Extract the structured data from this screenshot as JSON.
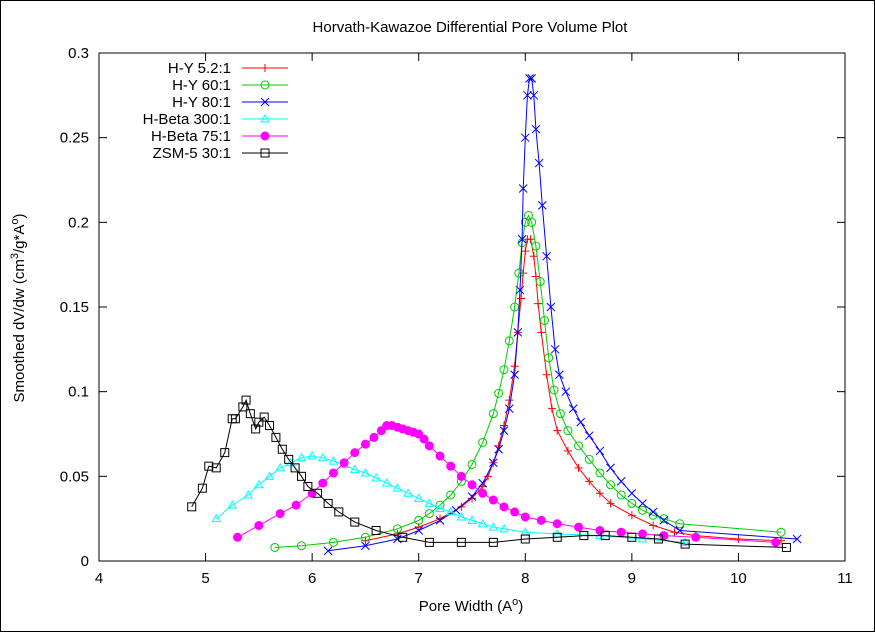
{
  "chart_data": {
    "type": "line",
    "title": "Horvath-Kawazoe Differential Pore Volume Plot",
    "xlabel": {
      "main": "Pore Width (A",
      "sup": "o",
      "tail": ")"
    },
    "ylabel": {
      "parts": [
        "Smoothed dV/dw (cm",
        "3",
        "/g*A",
        "o",
        ")"
      ]
    },
    "xlim": [
      4,
      11
    ],
    "ylim": [
      0,
      0.3
    ],
    "xticks": [
      4,
      5,
      6,
      7,
      8,
      9,
      10,
      11
    ],
    "xtick_labels": [
      "4",
      "5",
      "6",
      "7",
      "8",
      "9",
      "10",
      "11"
    ],
    "yticks": [
      0,
      0.05,
      0.1,
      0.15,
      0.2,
      0.25,
      0.3
    ],
    "ytick_labels": [
      "0",
      "0.05",
      "0.1",
      "0.15",
      "0.2",
      "0.25",
      "0.3"
    ],
    "grid": false,
    "legend_position": "top-left",
    "series": [
      {
        "name": "H-Y 5.2:1",
        "color": "#ff0000",
        "marker": "plus",
        "points": [
          [
            6.5,
            0.012
          ],
          [
            6.8,
            0.016
          ],
          [
            7.0,
            0.02
          ],
          [
            7.2,
            0.025
          ],
          [
            7.4,
            0.032
          ],
          [
            7.5,
            0.037
          ],
          [
            7.6,
            0.044
          ],
          [
            7.65,
            0.05
          ],
          [
            7.7,
            0.058
          ],
          [
            7.75,
            0.068
          ],
          [
            7.8,
            0.08
          ],
          [
            7.85,
            0.095
          ],
          [
            7.9,
            0.115
          ],
          [
            7.93,
            0.135
          ],
          [
            7.96,
            0.155
          ],
          [
            7.98,
            0.17
          ],
          [
            8.0,
            0.183
          ],
          [
            8.02,
            0.19
          ],
          [
            8.05,
            0.19
          ],
          [
            8.08,
            0.18
          ],
          [
            8.1,
            0.168
          ],
          [
            8.12,
            0.152
          ],
          [
            8.15,
            0.135
          ],
          [
            8.2,
            0.11
          ],
          [
            8.25,
            0.09
          ],
          [
            8.3,
            0.077
          ],
          [
            8.4,
            0.065
          ],
          [
            8.5,
            0.055
          ],
          [
            8.6,
            0.047
          ],
          [
            8.7,
            0.04
          ],
          [
            8.8,
            0.034
          ],
          [
            9.0,
            0.027
          ],
          [
            9.2,
            0.021
          ],
          [
            9.4,
            0.017
          ],
          [
            9.6,
            0.015
          ],
          [
            10.0,
            0.013
          ],
          [
            10.4,
            0.012
          ]
        ]
      },
      {
        "name": "H-Y 60:1",
        "color": "#00cc00",
        "marker": "circle",
        "points": [
          [
            5.65,
            0.008
          ],
          [
            5.9,
            0.009
          ],
          [
            6.2,
            0.011
          ],
          [
            6.5,
            0.014
          ],
          [
            6.8,
            0.019
          ],
          [
            7.0,
            0.024
          ],
          [
            7.1,
            0.028
          ],
          [
            7.2,
            0.033
          ],
          [
            7.3,
            0.039
          ],
          [
            7.4,
            0.047
          ],
          [
            7.5,
            0.057
          ],
          [
            7.6,
            0.07
          ],
          [
            7.7,
            0.087
          ],
          [
            7.75,
            0.099
          ],
          [
            7.8,
            0.113
          ],
          [
            7.85,
            0.13
          ],
          [
            7.9,
            0.15
          ],
          [
            7.94,
            0.17
          ],
          [
            7.97,
            0.188
          ],
          [
            8.0,
            0.2
          ],
          [
            8.03,
            0.204
          ],
          [
            8.06,
            0.2
          ],
          [
            8.1,
            0.186
          ],
          [
            8.14,
            0.165
          ],
          [
            8.18,
            0.142
          ],
          [
            8.22,
            0.12
          ],
          [
            8.27,
            0.101
          ],
          [
            8.33,
            0.087
          ],
          [
            8.4,
            0.077
          ],
          [
            8.5,
            0.068
          ],
          [
            8.6,
            0.06
          ],
          [
            8.7,
            0.052
          ],
          [
            8.8,
            0.045
          ],
          [
            8.9,
            0.039
          ],
          [
            9.0,
            0.034
          ],
          [
            9.1,
            0.03
          ],
          [
            9.2,
            0.027
          ],
          [
            9.3,
            0.025
          ],
          [
            9.45,
            0.022
          ],
          [
            10.4,
            0.017
          ]
        ]
      },
      {
        "name": "H-Y 80:1",
        "color": "#0000ff",
        "marker": "cross",
        "points": [
          [
            6.15,
            0.006
          ],
          [
            6.5,
            0.009
          ],
          [
            6.8,
            0.013
          ],
          [
            7.0,
            0.018
          ],
          [
            7.2,
            0.024
          ],
          [
            7.35,
            0.03
          ],
          [
            7.5,
            0.038
          ],
          [
            7.6,
            0.046
          ],
          [
            7.7,
            0.058
          ],
          [
            7.75,
            0.066
          ],
          [
            7.8,
            0.077
          ],
          [
            7.85,
            0.09
          ],
          [
            7.9,
            0.11
          ],
          [
            7.93,
            0.135
          ],
          [
            7.95,
            0.16
          ],
          [
            7.97,
            0.19
          ],
          [
            7.98,
            0.22
          ],
          [
            8.0,
            0.25
          ],
          [
            8.02,
            0.275
          ],
          [
            8.04,
            0.285
          ],
          [
            8.06,
            0.285
          ],
          [
            8.08,
            0.275
          ],
          [
            8.1,
            0.255
          ],
          [
            8.13,
            0.235
          ],
          [
            8.16,
            0.21
          ],
          [
            8.2,
            0.18
          ],
          [
            8.24,
            0.15
          ],
          [
            8.28,
            0.125
          ],
          [
            8.32,
            0.11
          ],
          [
            8.38,
            0.1
          ],
          [
            8.45,
            0.09
          ],
          [
            8.52,
            0.082
          ],
          [
            8.6,
            0.074
          ],
          [
            8.7,
            0.065
          ],
          [
            8.8,
            0.055
          ],
          [
            8.9,
            0.047
          ],
          [
            9.0,
            0.04
          ],
          [
            9.1,
            0.034
          ],
          [
            9.2,
            0.029
          ],
          [
            9.3,
            0.024
          ],
          [
            9.45,
            0.018
          ],
          [
            10.55,
            0.013
          ]
        ]
      },
      {
        "name": "H-Beta 300:1",
        "color": "#00ffff",
        "marker": "triangle",
        "points": [
          [
            5.1,
            0.025
          ],
          [
            5.25,
            0.033
          ],
          [
            5.4,
            0.039
          ],
          [
            5.5,
            0.045
          ],
          [
            5.6,
            0.05
          ],
          [
            5.7,
            0.055
          ],
          [
            5.8,
            0.058
          ],
          [
            5.9,
            0.061
          ],
          [
            6.0,
            0.062
          ],
          [
            6.1,
            0.061
          ],
          [
            6.2,
            0.059
          ],
          [
            6.3,
            0.057
          ],
          [
            6.4,
            0.054
          ],
          [
            6.5,
            0.052
          ],
          [
            6.6,
            0.049
          ],
          [
            6.7,
            0.046
          ],
          [
            6.8,
            0.043
          ],
          [
            6.9,
            0.04
          ],
          [
            7.0,
            0.037
          ],
          [
            7.1,
            0.034
          ],
          [
            7.2,
            0.031
          ],
          [
            7.3,
            0.029
          ],
          [
            7.4,
            0.026
          ],
          [
            7.5,
            0.024
          ],
          [
            7.6,
            0.022
          ],
          [
            7.7,
            0.02
          ],
          [
            7.8,
            0.019
          ],
          [
            8.0,
            0.017
          ],
          [
            8.3,
            0.016
          ],
          [
            8.7,
            0.015
          ],
          [
            9.1,
            0.013
          ],
          [
            9.5,
            0.011
          ]
        ]
      },
      {
        "name": "H-Beta 75:1",
        "color": "#ff00ff",
        "marker": "filled-circle",
        "points": [
          [
            5.3,
            0.014
          ],
          [
            5.5,
            0.021
          ],
          [
            5.7,
            0.028
          ],
          [
            5.85,
            0.033
          ],
          [
            6.0,
            0.04
          ],
          [
            6.1,
            0.046
          ],
          [
            6.2,
            0.052
          ],
          [
            6.3,
            0.058
          ],
          [
            6.4,
            0.064
          ],
          [
            6.5,
            0.069
          ],
          [
            6.58,
            0.073
          ],
          [
            6.65,
            0.077
          ],
          [
            6.7,
            0.08
          ],
          [
            6.75,
            0.08
          ],
          [
            6.8,
            0.079
          ],
          [
            6.85,
            0.078
          ],
          [
            6.9,
            0.077
          ],
          [
            6.95,
            0.076
          ],
          [
            7.0,
            0.075
          ],
          [
            7.05,
            0.072
          ],
          [
            7.1,
            0.068
          ],
          [
            7.2,
            0.062
          ],
          [
            7.3,
            0.056
          ],
          [
            7.4,
            0.05
          ],
          [
            7.5,
            0.045
          ],
          [
            7.6,
            0.04
          ],
          [
            7.7,
            0.036
          ],
          [
            7.8,
            0.032
          ],
          [
            7.9,
            0.029
          ],
          [
            8.0,
            0.026
          ],
          [
            8.15,
            0.024
          ],
          [
            8.3,
            0.022
          ],
          [
            8.5,
            0.02
          ],
          [
            8.7,
            0.018
          ],
          [
            8.9,
            0.017
          ],
          [
            9.1,
            0.016
          ],
          [
            9.3,
            0.015
          ],
          [
            9.6,
            0.014
          ],
          [
            10.35,
            0.011
          ]
        ]
      },
      {
        "name": "ZSM-5 30:1",
        "color": "#000000",
        "marker": "square",
        "points": [
          [
            4.87,
            0.032
          ],
          [
            4.97,
            0.043
          ],
          [
            5.03,
            0.056
          ],
          [
            5.1,
            0.055
          ],
          [
            5.18,
            0.064
          ],
          [
            5.25,
            0.084
          ],
          [
            5.28,
            0.084
          ],
          [
            5.35,
            0.091
          ],
          [
            5.38,
            0.095
          ],
          [
            5.42,
            0.087
          ],
          [
            5.47,
            0.078
          ],
          [
            5.5,
            0.082
          ],
          [
            5.55,
            0.085
          ],
          [
            5.6,
            0.08
          ],
          [
            5.66,
            0.073
          ],
          [
            5.72,
            0.066
          ],
          [
            5.78,
            0.06
          ],
          [
            5.84,
            0.055
          ],
          [
            5.9,
            0.05
          ],
          [
            5.96,
            0.044
          ],
          [
            6.05,
            0.04
          ],
          [
            6.15,
            0.034
          ],
          [
            6.25,
            0.029
          ],
          [
            6.4,
            0.023
          ],
          [
            6.6,
            0.018
          ],
          [
            6.85,
            0.014
          ],
          [
            7.1,
            0.011
          ],
          [
            7.4,
            0.011
          ],
          [
            7.7,
            0.011
          ],
          [
            8.0,
            0.013
          ],
          [
            8.3,
            0.014
          ],
          [
            8.55,
            0.015
          ],
          [
            8.75,
            0.015
          ],
          [
            9.0,
            0.014
          ],
          [
            9.25,
            0.013
          ],
          [
            9.5,
            0.01
          ],
          [
            10.45,
            0.008
          ]
        ]
      }
    ]
  }
}
